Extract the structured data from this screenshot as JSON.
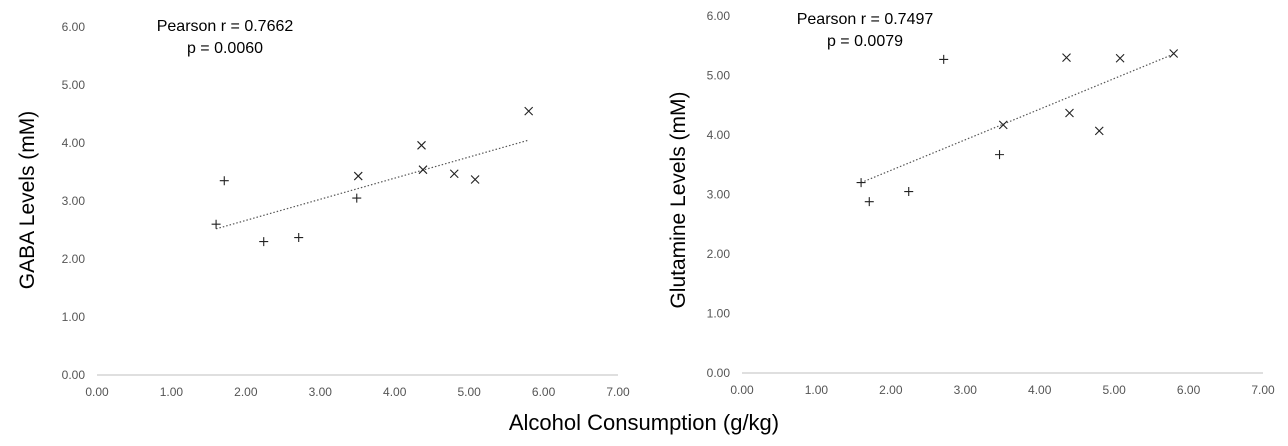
{
  "xlabel_shared": "Alcohol Consumption (g/kg)",
  "chart_data": [
    {
      "type": "scatter",
      "title": "",
      "xlabel": "Alcohol Consumption (g/kg)",
      "ylabel": "GABA Levels (mM)",
      "xlim": [
        0,
        7
      ],
      "ylim": [
        0,
        6
      ],
      "x_ticks": [
        "0.00",
        "1.00",
        "2.00",
        "3.00",
        "4.00",
        "5.00",
        "6.00",
        "7.00"
      ],
      "y_ticks": [
        "0.00",
        "1.00",
        "2.00",
        "3.00",
        "4.00",
        "5.00",
        "6.00"
      ],
      "grid": false,
      "annotation": [
        "Pearson r = 0.7662",
        "p = 0.0060"
      ],
      "series": [
        {
          "marker": "plus",
          "x": [
            1.6,
            1.71,
            2.24,
            2.71,
            3.49
          ],
          "y": [
            2.6,
            3.35,
            2.3,
            2.37,
            3.05
          ]
        },
        {
          "marker": "x",
          "x": [
            3.51,
            4.36,
            4.38,
            4.8,
            5.08,
            5.8
          ],
          "y": [
            3.43,
            3.96,
            3.54,
            3.47,
            3.37,
            4.55
          ]
        }
      ],
      "trendline": {
        "style": "dotted",
        "x": [
          1.6,
          5.8
        ],
        "y": [
          2.52,
          4.05
        ]
      }
    },
    {
      "type": "scatter",
      "title": "",
      "xlabel": "Alcohol Consumption (g/kg)",
      "ylabel": "Glutamine Levels (mM)",
      "xlim": [
        0,
        7
      ],
      "ylim": [
        0,
        6
      ],
      "x_ticks": [
        "0.00",
        "1.00",
        "2.00",
        "3.00",
        "4.00",
        "5.00",
        "6.00",
        "7.00"
      ],
      "y_ticks": [
        "0.00",
        "1.00",
        "2.00",
        "3.00",
        "4.00",
        "5.00",
        "6.00"
      ],
      "grid": false,
      "annotation": [
        "Pearson r = 0.7497",
        "p = 0.0079"
      ],
      "series": [
        {
          "marker": "plus",
          "x": [
            1.6,
            1.71,
            2.24,
            2.71,
            3.46
          ],
          "y": [
            3.2,
            2.88,
            3.05,
            5.27,
            3.67
          ]
        },
        {
          "marker": "x",
          "x": [
            3.51,
            4.36,
            4.4,
            4.8,
            5.08,
            5.8
          ],
          "y": [
            4.17,
            5.3,
            4.37,
            4.07,
            5.29,
            5.37
          ]
        }
      ],
      "trendline": {
        "style": "dotted",
        "x": [
          1.6,
          5.8
        ],
        "y": [
          3.2,
          5.36
        ]
      }
    }
  ]
}
